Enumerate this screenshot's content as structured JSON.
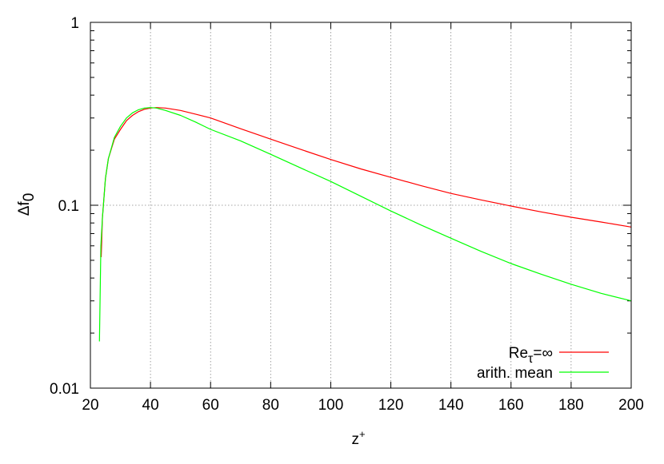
{
  "chart_data": {
    "type": "line",
    "xlabel": {
      "main": "z",
      "sup": "+"
    },
    "ylabel": {
      "main": "Δf",
      "sub": "0"
    },
    "xlim": [
      20,
      200
    ],
    "ylim": [
      0.01,
      1
    ],
    "yscale": "log",
    "grid": true,
    "legend_position": "bottom-right",
    "xticks": [
      20,
      40,
      60,
      80,
      100,
      120,
      140,
      160,
      180,
      200
    ],
    "xtick_labels": [
      "20",
      "40",
      "60",
      "80",
      "100",
      "120",
      "140",
      "160",
      "180",
      "200"
    ],
    "yticks": [
      0.01,
      0.1,
      1
    ],
    "ytick_labels": [
      "0.01",
      "0.1",
      "1"
    ],
    "series": [
      {
        "name": {
          "main": "Re",
          "sub": "τ",
          "rest": "=∞"
        },
        "color": "#ff0000",
        "x": [
          23.6,
          24,
          25,
          26,
          28,
          30,
          32,
          34,
          36,
          38,
          40,
          42,
          45,
          50,
          55,
          60,
          70,
          80,
          90,
          100,
          110,
          120,
          130,
          140,
          150,
          160,
          170,
          180,
          190,
          200
        ],
        "y": [
          0.052,
          0.085,
          0.14,
          0.18,
          0.23,
          0.26,
          0.29,
          0.31,
          0.325,
          0.335,
          0.34,
          0.342,
          0.34,
          0.33,
          0.315,
          0.3,
          0.262,
          0.23,
          0.202,
          0.178,
          0.158,
          0.142,
          0.128,
          0.116,
          0.107,
          0.099,
          0.092,
          0.086,
          0.081,
          0.076
        ]
      },
      {
        "name": {
          "main": "arith. mean",
          "sub": "",
          "rest": ""
        },
        "color": "#00ff00",
        "x": [
          23,
          23.5,
          24,
          25,
          26,
          28,
          30,
          32,
          34,
          36,
          38,
          40,
          42,
          45,
          50,
          55,
          60,
          70,
          80,
          90,
          100,
          110,
          120,
          130,
          140,
          150,
          160,
          170,
          180,
          190,
          200
        ],
        "y": [
          0.018,
          0.06,
          0.085,
          0.14,
          0.18,
          0.235,
          0.27,
          0.3,
          0.32,
          0.333,
          0.34,
          0.342,
          0.34,
          0.33,
          0.31,
          0.285,
          0.26,
          0.225,
          0.19,
          0.16,
          0.135,
          0.112,
          0.093,
          0.078,
          0.066,
          0.056,
          0.048,
          0.042,
          0.037,
          0.033,
          0.03
        ]
      }
    ]
  }
}
